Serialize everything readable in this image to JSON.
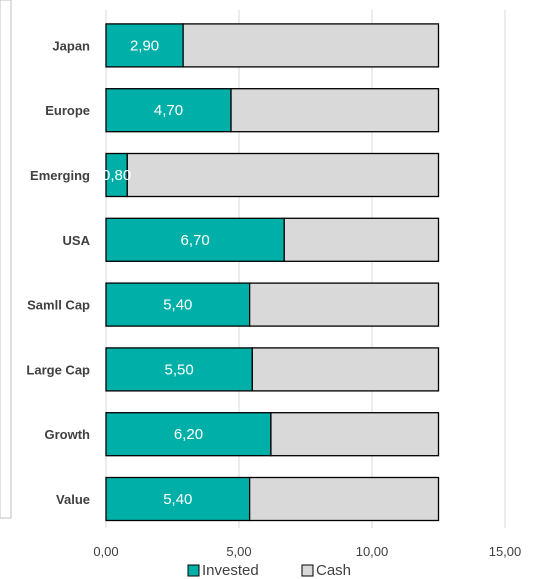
{
  "chart_data": {
    "type": "bar",
    "orientation": "horizontal",
    "stacked": true,
    "categories": [
      "Japan",
      "Europe",
      "Emerging",
      "USA",
      "Samll Cap",
      "Large Cap",
      "Growth",
      "Value"
    ],
    "series": [
      {
        "name": "Invested",
        "values": [
          2.9,
          4.7,
          0.8,
          6.7,
          5.4,
          5.5,
          6.2,
          5.4
        ],
        "color": "#00b0a8"
      },
      {
        "name": "Cash",
        "values": [
          9.6,
          7.8,
          11.7,
          5.8,
          7.1,
          7.0,
          6.3,
          7.1
        ],
        "color": "#d9d9d9"
      }
    ],
    "data_labels": [
      "2,90",
      "4,70",
      "0,80",
      "6,70",
      "5,40",
      "5,50",
      "6,20",
      "5,40"
    ],
    "x_ticks": [
      "0,00",
      "5,00",
      "10,00",
      "15,00"
    ],
    "x_tick_values": [
      0,
      5,
      10,
      15
    ],
    "xlim": [
      0,
      15
    ],
    "grid": true,
    "legend_position": "bottom",
    "title": "",
    "xlabel": "",
    "ylabel": ""
  }
}
